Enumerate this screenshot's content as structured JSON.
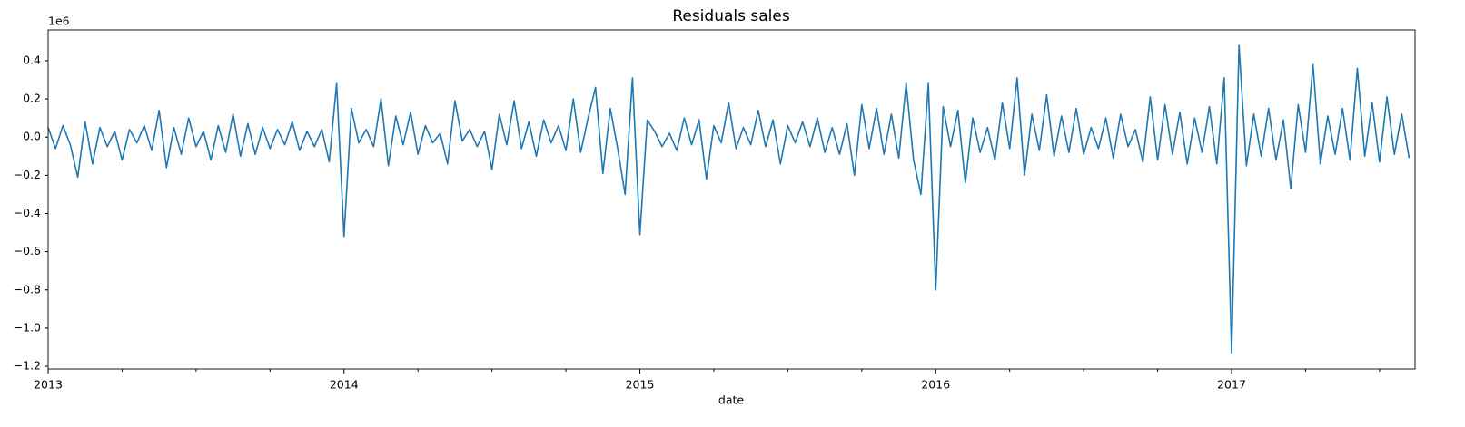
{
  "chart_data": {
    "type": "line",
    "title": "Residuals sales",
    "x_label": "date",
    "y_offset_label": "1e6",
    "xlim": [
      2013,
      2017.62
    ],
    "xticks": [
      2013,
      2014,
      2015,
      2016,
      2017
    ],
    "xminorticks": [
      2013.25,
      2013.5,
      2013.75,
      2014.25,
      2014.5,
      2014.75,
      2015.25,
      2015.5,
      2015.75,
      2016.25,
      2016.5,
      2016.75,
      2017.25,
      2017.5
    ],
    "ylim": [
      -1.214,
      0.561
    ],
    "yticks": [
      {
        "value": -1.2,
        "label": "−1.2"
      },
      {
        "value": -1.0,
        "label": "−1.0"
      },
      {
        "value": -0.8,
        "label": "−0.8"
      },
      {
        "value": -0.6,
        "label": "−0.6"
      },
      {
        "value": -0.4,
        "label": "−0.4"
      },
      {
        "value": -0.2,
        "label": "−0.2"
      },
      {
        "value": 0,
        "label": "0.0"
      },
      0.2,
      0.4
    ],
    "series": [
      {
        "color": "#1f77b4",
        "x": [
          2013,
          2013.025,
          2013.05,
          2013.075,
          2013.1,
          2013.125,
          2013.15,
          2013.175,
          2013.2,
          2013.225,
          2013.25,
          2013.275,
          2013.3,
          2013.325,
          2013.35,
          2013.375,
          2013.4,
          2013.425,
          2013.45,
          2013.475,
          2013.5,
          2013.525,
          2013.55,
          2013.575,
          2013.6,
          2013.625,
          2013.65,
          2013.675,
          2013.7,
          2013.725,
          2013.75,
          2013.775,
          2013.8,
          2013.825,
          2013.85,
          2013.875,
          2013.9,
          2013.925,
          2013.95,
          2013.975,
          2014,
          2014.025,
          2014.05,
          2014.075,
          2014.1,
          2014.125,
          2014.15,
          2014.175,
          2014.2,
          2014.225,
          2014.25,
          2014.275,
          2014.3,
          2014.325,
          2014.35,
          2014.375,
          2014.4,
          2014.425,
          2014.45,
          2014.475,
          2014.5,
          2014.525,
          2014.55,
          2014.575,
          2014.6,
          2014.625,
          2014.65,
          2014.675,
          2014.7,
          2014.725,
          2014.75,
          2014.775,
          2014.8,
          2014.825,
          2014.85,
          2014.875,
          2014.9,
          2014.925,
          2014.95,
          2014.975,
          2015,
          2015.025,
          2015.05,
          2015.075,
          2015.1,
          2015.125,
          2015.15,
          2015.175,
          2015.2,
          2015.225,
          2015.25,
          2015.275,
          2015.3,
          2015.325,
          2015.35,
          2015.375,
          2015.4,
          2015.425,
          2015.45,
          2015.475,
          2015.5,
          2015.525,
          2015.55,
          2015.575,
          2015.6,
          2015.625,
          2015.65,
          2015.675,
          2015.7,
          2015.725,
          2015.75,
          2015.775,
          2015.8,
          2015.825,
          2015.85,
          2015.875,
          2015.9,
          2015.925,
          2015.95,
          2015.975,
          2016,
          2016.025,
          2016.05,
          2016.075,
          2016.1,
          2016.125,
          2016.15,
          2016.175,
          2016.2,
          2016.225,
          2016.25,
          2016.275,
          2016.3,
          2016.325,
          2016.35,
          2016.375,
          2016.4,
          2016.425,
          2016.45,
          2016.475,
          2016.5,
          2016.525,
          2016.55,
          2016.575,
          2016.6,
          2016.625,
          2016.65,
          2016.675,
          2016.7,
          2016.725,
          2016.75,
          2016.775,
          2016.8,
          2016.825,
          2016.85,
          2016.875,
          2016.9,
          2016.925,
          2016.95,
          2016.975,
          2017,
          2017.025,
          2017.05,
          2017.075,
          2017.1,
          2017.125,
          2017.15,
          2017.175,
          2017.2,
          2017.225,
          2017.25,
          2017.275,
          2017.3,
          2017.325,
          2017.35,
          2017.375,
          2017.4,
          2017.425,
          2017.45,
          2017.475,
          2017.5,
          2017.525,
          2017.55,
          2017.575,
          2017.6
        ],
        "values": [
          0.05,
          -0.06,
          0.06,
          -0.04,
          -0.21,
          0.08,
          -0.14,
          0.05,
          -0.05,
          0.03,
          -0.12,
          0.04,
          -0.03,
          0.06,
          -0.07,
          0.14,
          -0.16,
          0.05,
          -0.09,
          0.1,
          -0.05,
          0.03,
          -0.12,
          0.06,
          -0.08,
          0.12,
          -0.1,
          0.07,
          -0.09,
          0.05,
          -0.06,
          0.04,
          -0.04,
          0.08,
          -0.07,
          0.03,
          -0.05,
          0.04,
          -0.13,
          0.28,
          -0.52,
          0.15,
          -0.03,
          0.04,
          -0.05,
          0.2,
          -0.15,
          0.11,
          -0.04,
          0.13,
          -0.09,
          0.06,
          -0.03,
          0.02,
          -0.14,
          0.19,
          -0.02,
          0.04,
          -0.05,
          0.03,
          -0.17,
          0.12,
          -0.04,
          0.19,
          -0.06,
          0.08,
          -0.1,
          0.09,
          -0.03,
          0.06,
          -0.07,
          0.2,
          -0.08,
          0.1,
          0.26,
          -0.19,
          0.15,
          -0.06,
          -0.3,
          0.31,
          -0.51,
          0.09,
          0.03,
          -0.05,
          0.02,
          -0.07,
          0.1,
          -0.04,
          0.09,
          -0.22,
          0.06,
          -0.03,
          0.18,
          -0.06,
          0.05,
          -0.04,
          0.14,
          -0.05,
          0.09,
          -0.14,
          0.06,
          -0.03,
          0.08,
          -0.05,
          0.1,
          -0.08,
          0.05,
          -0.09,
          0.07,
          -0.2,
          0.17,
          -0.06,
          0.15,
          -0.09,
          0.12,
          -0.11,
          0.28,
          -0.12,
          -0.3,
          0.28,
          -0.8,
          0.16,
          -0.05,
          0.14,
          -0.24,
          0.1,
          -0.08,
          0.05,
          -0.12,
          0.18,
          -0.06,
          0.31,
          -0.2,
          0.12,
          -0.07,
          0.22,
          -0.1,
          0.11,
          -0.08,
          0.15,
          -0.09,
          0.05,
          -0.06,
          0.1,
          -0.11,
          0.12,
          -0.05,
          0.04,
          -0.13,
          0.21,
          -0.12,
          0.17,
          -0.09,
          0.13,
          -0.14,
          0.1,
          -0.08,
          0.16,
          -0.14,
          0.31,
          -1.13,
          0.48,
          -0.15,
          0.12,
          -0.1,
          0.15,
          -0.12,
          0.09,
          -0.27,
          0.17,
          -0.08,
          0.38,
          -0.14,
          0.11,
          -0.09,
          0.15,
          -0.12,
          0.36,
          -0.1,
          0.18,
          -0.13,
          0.21,
          -0.09,
          0.12,
          -0.11
        ]
      }
    ]
  }
}
